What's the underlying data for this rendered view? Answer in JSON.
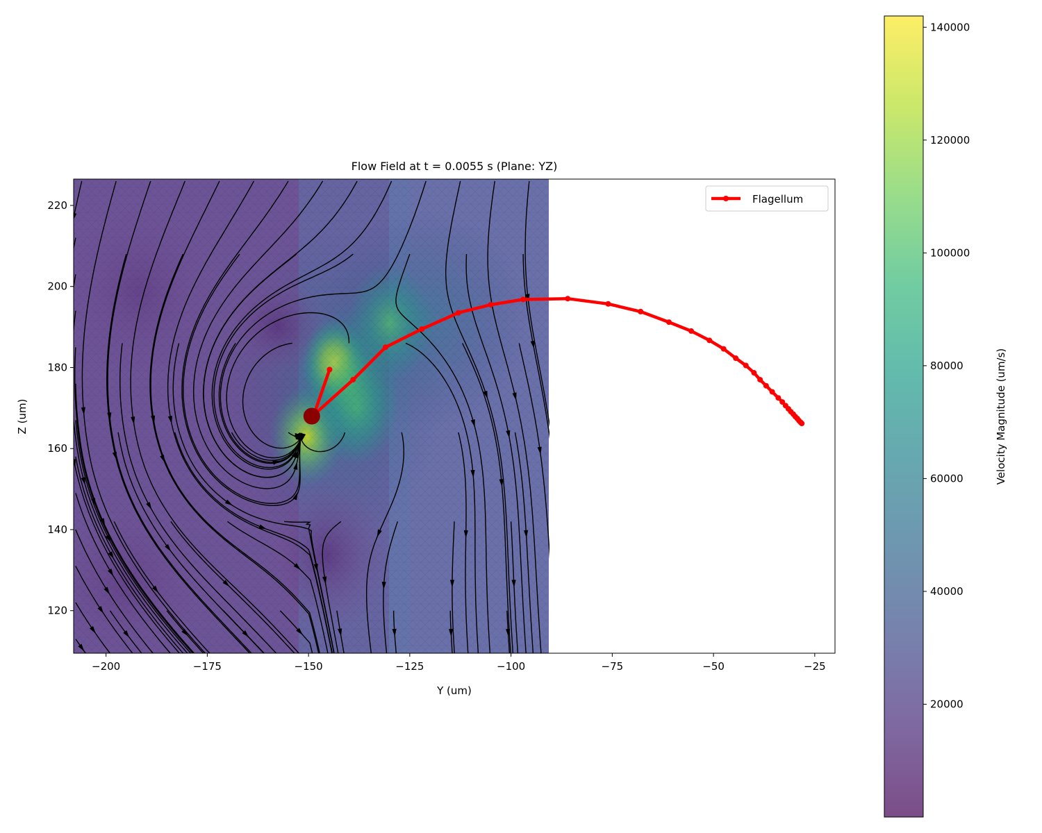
{
  "chart_data": {
    "type": "streamplot",
    "title": "Flow Field at t = 0.0055 s (Plane: YZ)",
    "xlabel": "Y (um)",
    "ylabel": "Z (um)",
    "xlim": [
      -208,
      -20
    ],
    "ylim": [
      109.5,
      226.5
    ],
    "xticks": [
      -200,
      -175,
      -150,
      -125,
      -100,
      -75,
      -50,
      -25
    ],
    "xtick_labels": [
      "−200",
      "−175",
      "−150",
      "−125",
      "−100",
      "−75",
      "−50",
      "−25"
    ],
    "yticks": [
      120,
      140,
      160,
      180,
      200,
      220
    ],
    "ytick_labels": [
      "120",
      "140",
      "160",
      "180",
      "200",
      "220"
    ],
    "field_extent": {
      "y": [
        -208,
        -90.5
      ],
      "z": [
        109.5,
        226.5
      ]
    },
    "colormap": "viridis",
    "colormap_alpha": 0.7,
    "colorbar": {
      "label": "Velocity Magnitude (um/s)",
      "range": [
        0,
        142000
      ],
      "ticks": [
        20000,
        40000,
        60000,
        80000,
        100000,
        120000,
        140000
      ],
      "tick_labels": [
        "20000",
        "40000",
        "60000",
        "80000",
        "100000",
        "120000",
        "140000"
      ]
    },
    "legend": {
      "position": "upper-right",
      "entries": [
        {
          "label": "Flagellum",
          "color": "#ff0000"
        }
      ]
    },
    "flagellum": {
      "name": "Flagellum",
      "color": "#ff0000",
      "y": [
        -148.5,
        -139,
        -131,
        -122,
        -113,
        -105,
        -97,
        -86,
        -76,
        -68,
        -61,
        -55.5,
        -51,
        -47.5,
        -44.5,
        -42,
        -40,
        -38.5,
        -37,
        -35.5,
        -34,
        -33,
        -32.2,
        -31.5,
        -30.9,
        -30.3,
        -29.8,
        -29.3,
        -28.9,
        -28.5,
        -28.2
      ],
      "z": [
        168.5,
        177,
        185,
        189.5,
        193.5,
        195.5,
        196.8,
        197,
        195.7,
        193.8,
        191.2,
        189,
        186.7,
        184.6,
        182.3,
        180.5,
        178.7,
        177,
        175.5,
        174,
        172.5,
        171.5,
        170.6,
        169.8,
        169.1,
        168.5,
        167.9,
        167.4,
        166.9,
        166.5,
        166.2
      ]
    },
    "head_branch": {
      "y": [
        -148.8,
        -144.8
      ],
      "z": [
        168,
        179.5
      ],
      "color": "#ff0000"
    },
    "cell_body": {
      "y": -149.2,
      "z": 168,
      "color": "#8b0000"
    },
    "high_speed_regions": [
      {
        "y": -143.5,
        "z": 181,
        "level": 142000
      },
      {
        "y": -150.5,
        "z": 163,
        "level": 112000
      },
      {
        "y": -138,
        "z": 170,
        "level": 80000
      },
      {
        "y": -130,
        "z": 191,
        "level": 78000
      }
    ]
  }
}
